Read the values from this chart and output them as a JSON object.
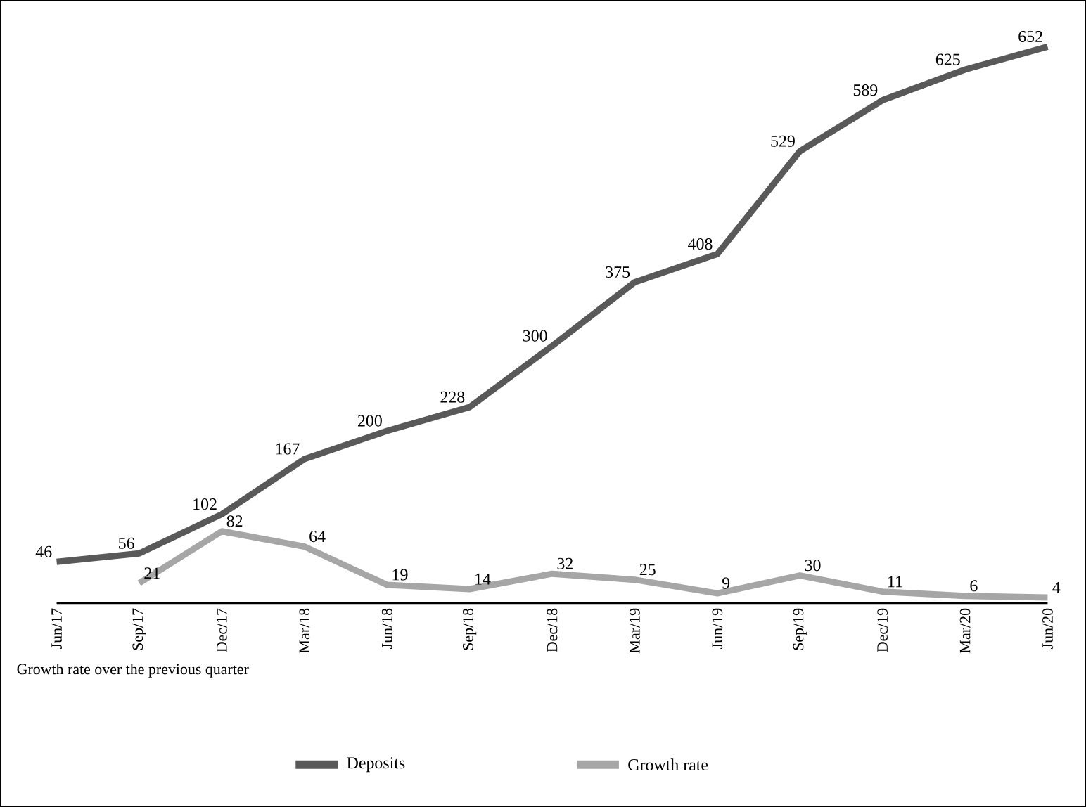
{
  "chart_data": {
    "type": "line",
    "categories": [
      "Jun/17",
      "Sep/17",
      "Dec/17",
      "Mar/18",
      "Jun/18",
      "Sep/18",
      "Dec/18",
      "Mar/19",
      "Jun/19",
      "Sep/19",
      "Dec/19",
      "Mar/20",
      "Jun/20"
    ],
    "series": [
      {
        "name": "Deposits",
        "color": "#595959",
        "values": [
          46,
          56,
          102,
          167,
          200,
          228,
          300,
          375,
          408,
          529,
          589,
          625,
          652
        ]
      },
      {
        "name": "Growth rate",
        "color": "#a6a6a6",
        "values": [
          null,
          21,
          82,
          64,
          19,
          14,
          32,
          25,
          9,
          30,
          11,
          6,
          4
        ]
      }
    ],
    "tick_labels": "x",
    "data_labels": true,
    "legend": "bottom",
    "marker": "none",
    "line_style": "solid",
    "grid": false,
    "annotations": [
      "Growth rate over the previous quarter"
    ]
  }
}
